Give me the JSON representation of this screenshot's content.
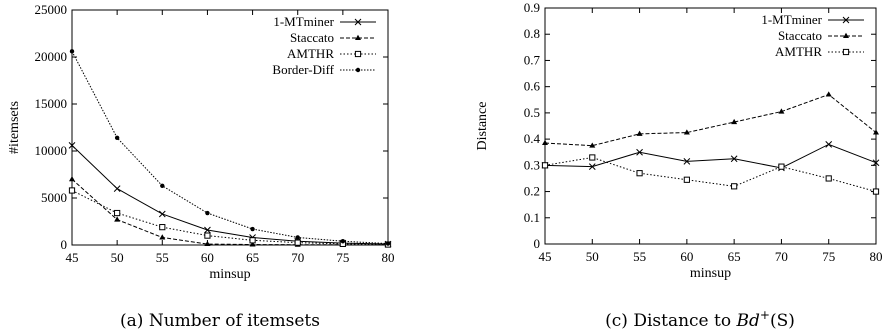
{
  "chart_data": [
    {
      "type": "line",
      "caption": "(a) Number of itemsets",
      "xlabel": "minsup",
      "ylabel": "#itemsets",
      "xlim": [
        45,
        80
      ],
      "ylim": [
        0,
        25000
      ],
      "xticks": [
        45,
        50,
        55,
        60,
        65,
        70,
        75,
        80
      ],
      "yticks": [
        0,
        5000,
        10000,
        15000,
        20000,
        25000
      ],
      "legend_position": "top-right",
      "grid": false,
      "series": [
        {
          "name": "1-MTminer",
          "marker": "x",
          "dash": "solid",
          "x": [
            45,
            50,
            55,
            60,
            65,
            70,
            75,
            80
          ],
          "y": [
            10600,
            6000,
            3300,
            1600,
            800,
            400,
            200,
            100
          ]
        },
        {
          "name": "Staccato",
          "marker": "triangle",
          "dash": "dashed",
          "x": [
            45,
            50,
            55,
            60,
            65,
            70,
            75,
            80
          ],
          "y": [
            7000,
            2700,
            800,
            100,
            50,
            30,
            20,
            10
          ]
        },
        {
          "name": "AMTHR",
          "marker": "square",
          "dash": "dotted",
          "x": [
            45,
            50,
            55,
            60,
            65,
            70,
            75,
            80
          ],
          "y": [
            5800,
            3400,
            1900,
            1000,
            500,
            250,
            120,
            50
          ]
        },
        {
          "name": "Border-Diff",
          "marker": "dot",
          "dash": "dashdot",
          "x": [
            45,
            50,
            55,
            60,
            65,
            70,
            75,
            80
          ],
          "y": [
            20600,
            11400,
            6300,
            3400,
            1700,
            800,
            400,
            150
          ]
        }
      ]
    },
    {
      "type": "line",
      "caption_prefix": "(c) Distance to ",
      "caption_math": "Bd",
      "caption_sup": "+",
      "caption_suffix": "(S)",
      "xlabel": "minsup",
      "ylabel": "Distance",
      "xlim": [
        45,
        80
      ],
      "ylim": [
        0,
        0.9
      ],
      "xticks": [
        45,
        50,
        55,
        60,
        65,
        70,
        75,
        80
      ],
      "yticks": [
        0,
        0.1,
        0.2,
        0.3,
        0.4,
        0.5,
        0.6,
        0.7,
        0.8,
        0.9
      ],
      "legend_position": "top-right",
      "grid": false,
      "series": [
        {
          "name": "1-MTminer",
          "marker": "x",
          "dash": "solid",
          "x": [
            45,
            50,
            55,
            60,
            65,
            70,
            75,
            80
          ],
          "y": [
            0.3,
            0.295,
            0.35,
            0.315,
            0.325,
            0.29,
            0.38,
            0.31
          ]
        },
        {
          "name": "Staccato",
          "marker": "triangle",
          "dash": "dashed",
          "x": [
            45,
            50,
            55,
            60,
            65,
            70,
            75,
            80
          ],
          "y": [
            0.385,
            0.375,
            0.42,
            0.425,
            0.465,
            0.505,
            0.57,
            0.425
          ]
        },
        {
          "name": "AMTHR",
          "marker": "square",
          "dash": "dotted",
          "x": [
            45,
            50,
            55,
            60,
            65,
            70,
            75,
            80
          ],
          "y": [
            0.3,
            0.33,
            0.27,
            0.245,
            0.22,
            0.295,
            0.25,
            0.2
          ]
        }
      ]
    }
  ]
}
